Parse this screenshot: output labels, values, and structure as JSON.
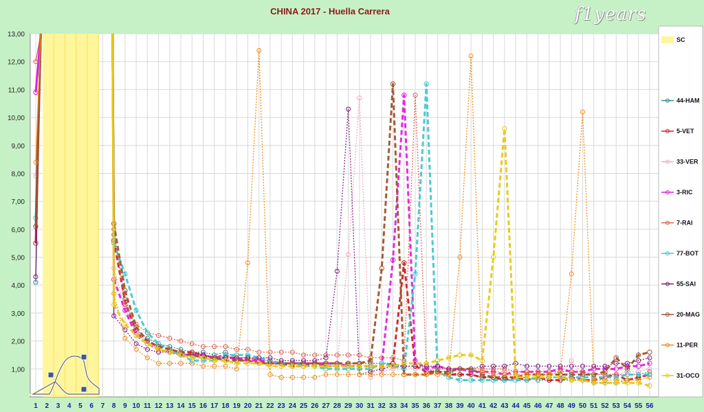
{
  "title": "CHINA 2017 - Huella Carrera",
  "logo_text": "f1years",
  "chart_data": {
    "type": "line",
    "title": "CHINA 2017 - Huella Carrera",
    "ylim": [
      0,
      13
    ],
    "y_ticks": [
      "1,00",
      "2,00",
      "3,00",
      "4,00",
      "5,00",
      "6,00",
      "7,00",
      "8,00",
      "9,00",
      "10,00",
      "11,00",
      "12,00",
      "13,00"
    ],
    "x_categories": [
      "1",
      "2",
      "3",
      "4",
      "5",
      "6",
      "7",
      "8",
      "9",
      "10",
      "11",
      "12",
      "13",
      "14",
      "15",
      "16",
      "17",
      "18",
      "19",
      "20",
      "21",
      "22",
      "23",
      "24",
      "25",
      "26",
      "27",
      "28",
      "29",
      "30",
      "31",
      "32",
      "33",
      "34",
      "35",
      "36",
      "37",
      "38",
      "39",
      "40",
      "41",
      "42",
      "43",
      "44",
      "45",
      "46",
      "47",
      "48",
      "49",
      "50",
      "51",
      "52",
      "53",
      "54",
      "55",
      "56"
    ],
    "safety_car_laps": [
      2,
      3,
      4,
      5,
      6
    ],
    "grid": true,
    "legend_position": "right",
    "series": [
      {
        "name": "SC",
        "color": "#fff59a",
        "kind": "area"
      },
      {
        "name": "44-HAM",
        "color": "#2e8b8b",
        "values": [
          4.1,
          null,
          null,
          null,
          null,
          null,
          null,
          5.8,
          3.5,
          2.4,
          2.1,
          1.9,
          1.8,
          1.7,
          1.6,
          1.6,
          1.5,
          1.6,
          1.4,
          1.4,
          1.3,
          1.3,
          1.2,
          1.2,
          1.2,
          1.2,
          1.1,
          1.1,
          1.2,
          1.2,
          1.2,
          1.2,
          1.2,
          1.1,
          1.1,
          1.0,
          0.9,
          0.9,
          0.8,
          0.8,
          0.7,
          0.7,
          0.7,
          0.7,
          0.7,
          0.6,
          0.6,
          0.6,
          0.6,
          0.6,
          0.5,
          0.5,
          0.5,
          0.6,
          0.7,
          0.8
        ]
      },
      {
        "name": "5-VET",
        "color": "#cc2222",
        "values": [
          5.5,
          null,
          null,
          null,
          null,
          null,
          null,
          5.6,
          3.4,
          2.3,
          2.0,
          1.8,
          1.7,
          1.6,
          1.6,
          1.5,
          1.4,
          1.5,
          1.3,
          1.4,
          1.3,
          1.2,
          1.2,
          1.1,
          1.1,
          1.2,
          1.1,
          1.1,
          1.1,
          1.1,
          1.1,
          1.1,
          1.2,
          4.8,
          1.1,
          0.9,
          0.9,
          0.8,
          0.8,
          0.8,
          0.7,
          0.7,
          0.6,
          0.7,
          0.6,
          0.7,
          0.6,
          0.6,
          0.7,
          0.6,
          0.6,
          0.7,
          0.8,
          0.6,
          0.7,
          0.8
        ]
      },
      {
        "name": "33-VER",
        "color": "#f4a6c0",
        "values": [
          7.9,
          null,
          null,
          null,
          null,
          null,
          null,
          4.6,
          3.2,
          2.3,
          2.0,
          1.7,
          1.6,
          1.6,
          1.5,
          1.5,
          1.4,
          1.5,
          1.4,
          1.4,
          1.3,
          1.3,
          1.2,
          1.2,
          1.2,
          1.2,
          1.2,
          1.1,
          5.1,
          10.7,
          0.7,
          0.9,
          1.0,
          1.1,
          1.0,
          1.0,
          1.0,
          1.0,
          1.0,
          0.9,
          0.9,
          0.9,
          0.9,
          0.9,
          0.9,
          0.8,
          0.8,
          0.8,
          1.3,
          0.8,
          0.8,
          0.8,
          0.8,
          0.9,
          0.9,
          1.0
        ]
      },
      {
        "name": "3-RIC",
        "color": "#e020e0",
        "values": [
          10.9,
          null,
          null,
          null,
          null,
          null,
          null,
          4.2,
          3.1,
          2.2,
          1.9,
          1.7,
          1.6,
          1.5,
          1.5,
          1.5,
          1.4,
          1.4,
          1.4,
          1.3,
          1.3,
          1.3,
          1.2,
          1.2,
          1.2,
          1.2,
          1.2,
          1.2,
          1.1,
          1.1,
          1.1,
          1.1,
          4.9,
          10.8,
          1.3,
          1.0,
          1.1,
          1.0,
          1.0,
          0.9,
          0.9,
          0.9,
          0.8,
          0.9,
          0.9,
          0.9,
          0.9,
          1.0,
          0.9,
          0.9,
          1.0,
          1.0,
          1.0,
          1.1,
          1.1,
          1.2
        ]
      },
      {
        "name": "7-RAI",
        "color": "#e2604a",
        "values": [
          12.0,
          null,
          null,
          null,
          null,
          null,
          null,
          6.0,
          3.3,
          2.6,
          2.3,
          2.2,
          2.1,
          2.0,
          1.9,
          1.8,
          1.8,
          1.8,
          1.7,
          1.7,
          1.6,
          1.6,
          1.6,
          1.6,
          1.5,
          1.5,
          1.5,
          1.5,
          1.5,
          1.5,
          1.4,
          1.4,
          1.4,
          1.3,
          10.8,
          1.1,
          1.0,
          1.0,
          1.0,
          1.0,
          1.0,
          1.0,
          1.0,
          0.9,
          0.9,
          0.9,
          0.9,
          0.9,
          0.9,
          0.9,
          0.8,
          0.8,
          0.8,
          0.8,
          0.8,
          0.9
        ]
      },
      {
        "name": "77-BOT",
        "color": "#40c8d0",
        "values": [
          6.4,
          null,
          null,
          null,
          null,
          null,
          null,
          5.5,
          4.4,
          3.1,
          2.3,
          1.9,
          1.7,
          1.5,
          1.3,
          1.3,
          1.3,
          1.5,
          1.5,
          1.5,
          1.4,
          1.3,
          1.2,
          1.2,
          1.1,
          1.1,
          1.0,
          1.0,
          1.0,
          1.0,
          1.0,
          1.2,
          1.1,
          1.0,
          4.4,
          11.2,
          0.9,
          0.7,
          0.6,
          0.6,
          0.6,
          0.6,
          0.6,
          0.6,
          0.6,
          0.7,
          0.7,
          0.7,
          0.7,
          0.7,
          0.7,
          0.7,
          0.7,
          0.8,
          0.8,
          0.8
        ]
      },
      {
        "name": "55-SAI",
        "color": "#7b1c7b",
        "values": [
          4.3,
          null,
          null,
          null,
          null,
          null,
          null,
          2.9,
          2.4,
          1.9,
          1.7,
          1.6,
          1.6,
          1.5,
          1.5,
          1.5,
          1.4,
          1.4,
          1.4,
          1.4,
          1.4,
          1.4,
          1.3,
          1.3,
          1.3,
          1.3,
          1.4,
          4.5,
          10.3,
          0.8,
          0.9,
          1.0,
          1.1,
          1.1,
          1.1,
          1.1,
          1.1,
          1.0,
          1.0,
          1.0,
          1.1,
          1.1,
          1.1,
          1.2,
          1.1,
          1.1,
          1.1,
          1.1,
          1.1,
          1.1,
          1.1,
          1.1,
          1.2,
          1.2,
          1.3,
          1.4
        ]
      },
      {
        "name": "20-MAG",
        "color": "#a0522d",
        "values": [
          6.1,
          null,
          null,
          null,
          null,
          null,
          null,
          6.2,
          3.8,
          2.5,
          2.0,
          1.8,
          1.7,
          1.6,
          1.5,
          1.4,
          1.4,
          1.3,
          1.3,
          1.3,
          1.2,
          1.2,
          1.2,
          1.2,
          1.2,
          1.2,
          1.2,
          1.2,
          1.2,
          1.2,
          1.3,
          4.6,
          11.2,
          0.8,
          0.8,
          0.8,
          0.9,
          0.9,
          1.0,
          1.0,
          0.8,
          0.7,
          0.7,
          0.7,
          0.8,
          0.8,
          0.8,
          0.8,
          0.8,
          0.8,
          0.8,
          0.9,
          1.4,
          1.0,
          1.5,
          1.6
        ]
      },
      {
        "name": "11-PER",
        "color": "#f08a10",
        "values": [
          8.4,
          null,
          null,
          null,
          null,
          null,
          null,
          3.7,
          2.1,
          1.7,
          1.4,
          1.2,
          1.2,
          1.2,
          1.2,
          1.1,
          1.1,
          1.1,
          1.0,
          4.8,
          12.4,
          0.8,
          0.7,
          0.7,
          0.7,
          0.7,
          0.8,
          0.8,
          0.8,
          0.8,
          0.8,
          0.8,
          0.8,
          0.8,
          0.8,
          0.8,
          0.8,
          0.8,
          5.0,
          12.2,
          0.9,
          0.8,
          0.8,
          0.8,
          0.8,
          0.8,
          0.8,
          0.9,
          4.4,
          10.2,
          0.6,
          0.6,
          0.6,
          0.6,
          0.6,
          0.7
        ]
      },
      {
        "name": "31-OCO",
        "color": "#e8c810",
        "values": [
          null,
          null,
          null,
          null,
          null,
          null,
          null,
          3.3,
          2.6,
          2.2,
          1.9,
          1.7,
          1.6,
          1.5,
          1.4,
          1.4,
          1.3,
          1.3,
          1.2,
          1.2,
          1.2,
          1.1,
          1.1,
          1.1,
          1.1,
          1.1,
          1.1,
          1.1,
          1.1,
          1.1,
          1.1,
          1.1,
          1.1,
          1.2,
          1.2,
          1.2,
          1.3,
          1.4,
          1.5,
          1.5,
          1.3,
          5.0,
          9.6,
          0.7,
          0.7,
          0.7,
          0.7,
          0.7,
          0.6,
          0.6,
          0.5,
          0.5,
          0.5,
          0.5,
          0.5,
          0.4
        ]
      }
    ]
  }
}
